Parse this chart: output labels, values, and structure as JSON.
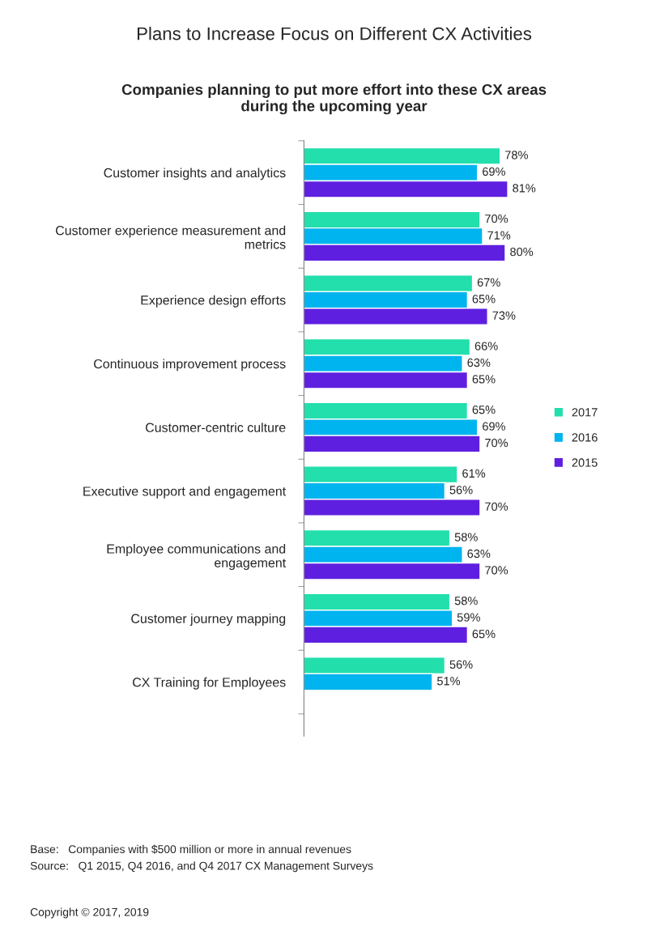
{
  "chart_data": {
    "type": "bar",
    "orientation": "horizontal",
    "title": "Plans to Increase Focus on Different CX Activities",
    "subtitle": "Companies planning to put more effort into these CX areas during the upcoming year",
    "categories": [
      "Customer insights and analytics",
      "Customer experience measurement and metrics",
      "Experience design efforts",
      "Continuous improvement process",
      "Customer-centric culture",
      "Executive support and engagement",
      "Employee communications and engagement",
      "Customer journey mapping",
      "CX Training for Employees"
    ],
    "series": [
      {
        "name": "2017",
        "color": "#22dfac",
        "values": [
          78,
          70,
          67,
          66,
          65,
          61,
          58,
          58,
          56
        ],
        "value_labels": [
          "78%",
          "70%",
          "67%",
          "66%",
          "65%",
          "61%",
          "58%",
          "58%",
          "56%"
        ]
      },
      {
        "name": "2016",
        "color": "#00b4ef",
        "values": [
          69,
          71,
          65,
          63,
          69,
          56,
          63,
          59,
          51
        ],
        "value_labels": [
          "69%",
          "71%",
          "65%",
          "63%",
          "69%",
          "56%",
          "63%",
          "59%",
          "51%"
        ]
      },
      {
        "name": "2015",
        "color": "#5f1fe0",
        "values": [
          81,
          80,
          73,
          65,
          70,
          70,
          70,
          65,
          null
        ],
        "value_labels": [
          "81%",
          "80%",
          "73%",
          "65%",
          "70%",
          "70%",
          "70%",
          "65%",
          null
        ]
      }
    ],
    "legend": "right",
    "grid": false,
    "annotations": [
      "Base:   Companies with $500 million or more in annual revenues",
      "Source:   Q1 2015, Q4 2016, and Q4 2017 CX Management Surveys",
      "Copyright © 2017, 2019"
    ]
  }
}
